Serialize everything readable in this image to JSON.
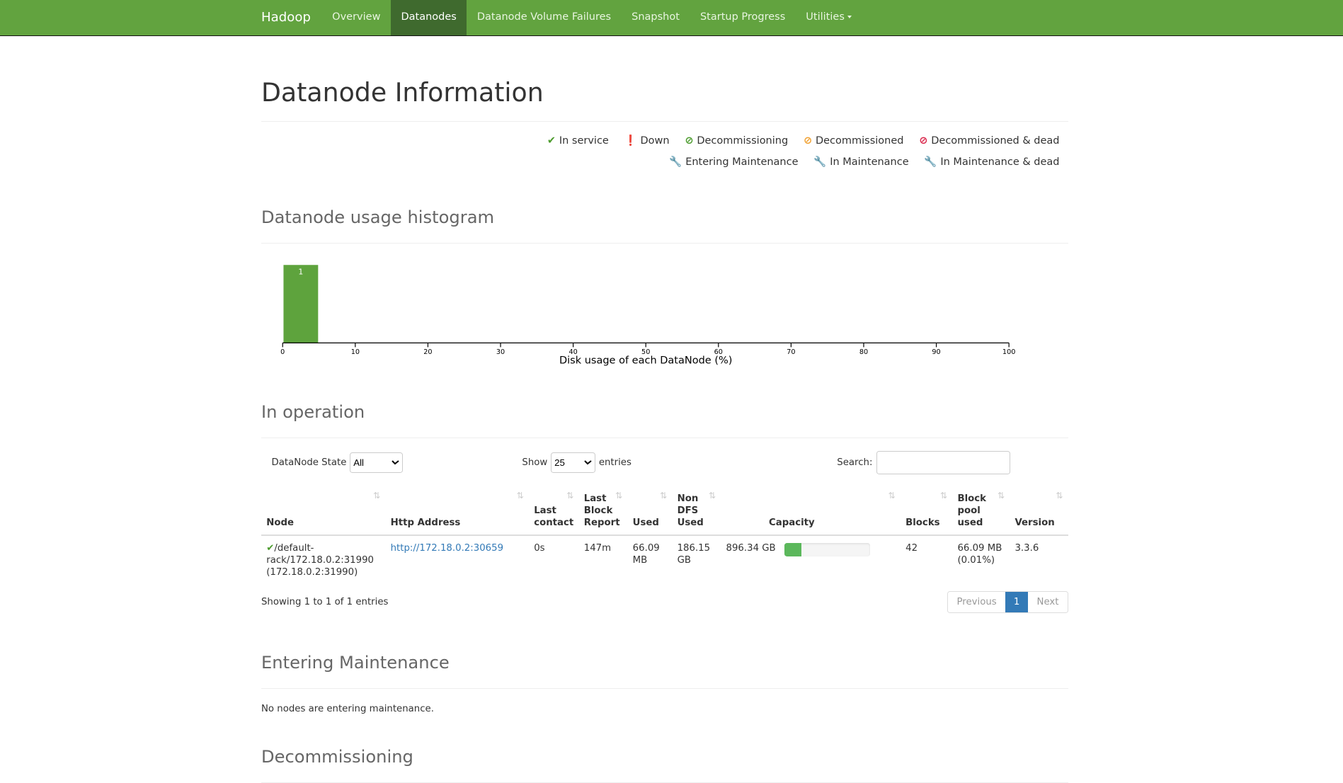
{
  "nav": {
    "brand": "Hadoop",
    "items": [
      "Overview",
      "Datanodes",
      "Datanode Volume Failures",
      "Snapshot",
      "Startup Progress",
      "Utilities"
    ],
    "active": "Datanodes",
    "color": "#62a33f"
  },
  "title": "Datanode Information",
  "legend": [
    {
      "icon": "check-icon",
      "glyph": "✔",
      "color": "#4b9b2c",
      "label": "In service"
    },
    {
      "icon": "exclamation-circle-icon",
      "glyph": "❗",
      "color": "#d9254a",
      "label": "Down"
    },
    {
      "icon": "ban-icon",
      "glyph": "⊘",
      "color": "#4b9b2c",
      "label": "Decommissioning"
    },
    {
      "icon": "ban-icon",
      "glyph": "⊘",
      "color": "#f0a030",
      "label": "Decommissioned"
    },
    {
      "icon": "ban-icon",
      "glyph": "⊘",
      "color": "#d9254a",
      "label": "Decommissioned & dead"
    },
    {
      "icon": "wrench-icon",
      "glyph": "🔧",
      "color": "#4b9b2c",
      "label": "Entering Maintenance"
    },
    {
      "icon": "wrench-icon",
      "glyph": "🔧",
      "color": "#f0a030",
      "label": "In Maintenance"
    },
    {
      "icon": "wrench-icon",
      "glyph": "🔧",
      "color": "#d9254a",
      "label": "In Maintenance & dead"
    }
  ],
  "histogram": {
    "heading": "Datanode usage histogram"
  },
  "chart_data": {
    "type": "bar",
    "xlabel": "Disk usage of each DataNode (%)",
    "xlim": [
      0,
      100
    ],
    "ticks": [
      0,
      10,
      20,
      30,
      40,
      50,
      60,
      70,
      80,
      90,
      100
    ],
    "bins": [
      {
        "x0": 0,
        "x1": 5,
        "count": 1
      }
    ],
    "color": "#5ea33d"
  },
  "operation": {
    "heading": "In operation",
    "state_label": "DataNode State",
    "state_value": "All",
    "show": "Show",
    "entries_value": "25",
    "entries": "entries",
    "search_label": "Search:",
    "search_value": "",
    "columns": [
      "Node",
      "Http Address",
      "Last contact",
      "Last Block Report",
      "Used",
      "Non DFS Used",
      "Capacity",
      "Blocks",
      "Block pool used",
      "Version"
    ],
    "rows": [
      {
        "node": "/default-rack/172.18.0.2:31990 (172.18.0.2:31990)",
        "http": "http://172.18.0.2:30659",
        "last_contact": "0s",
        "last_block_report": "147m",
        "used": "66.09 MB",
        "non_dfs": "186.15 GB",
        "capacity": "896.34 GB",
        "capacity_used_percent": 20,
        "blocks": "42",
        "block_pool": "66.09 MB (0.01%)",
        "version": "3.3.6"
      }
    ],
    "showing": "Showing 1 to 1 of 1 entries",
    "prev": "Previous",
    "page": "1",
    "next": "Next"
  },
  "entering": {
    "heading": "Entering Maintenance",
    "text": "No nodes are entering maintenance."
  },
  "decom": {
    "heading": "Decommissioning"
  }
}
